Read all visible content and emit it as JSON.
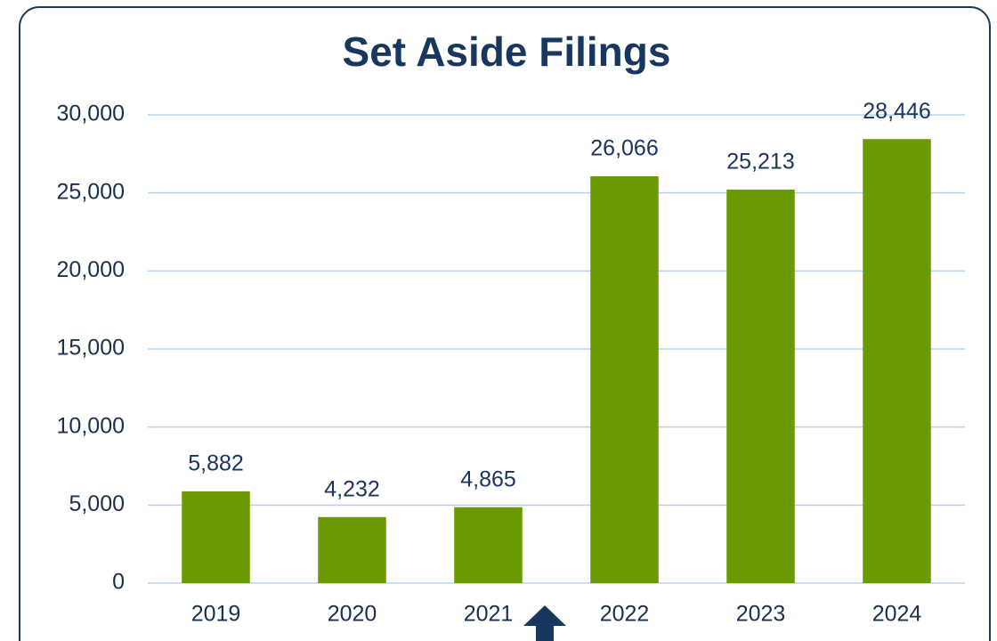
{
  "chart_data": {
    "type": "bar",
    "title": "Set Aside Filings",
    "categories": [
      "2019",
      "2020",
      "2021",
      "2022",
      "2023",
      "2024"
    ],
    "values": [
      5882,
      4232,
      4865,
      26066,
      25213,
      28446
    ],
    "value_labels": [
      "5,882",
      "4,232",
      "4,865",
      "26,066",
      "25,213",
      "28,446"
    ],
    "color": "#6a9900",
    "ylim": [
      0,
      30000
    ],
    "yticks": [
      0,
      {
        "value": 5000,
        "label": "5,000"
      },
      {
        "value": 10000,
        "label": "10,000"
      },
      {
        "value": 15000,
        "label": "15,000"
      },
      {
        "value": 20000,
        "label": "20,000"
      },
      {
        "value": 25000,
        "label": "25,000"
      },
      {
        "value": 30000,
        "label": "30,000"
      }
    ],
    "grid": true
  }
}
